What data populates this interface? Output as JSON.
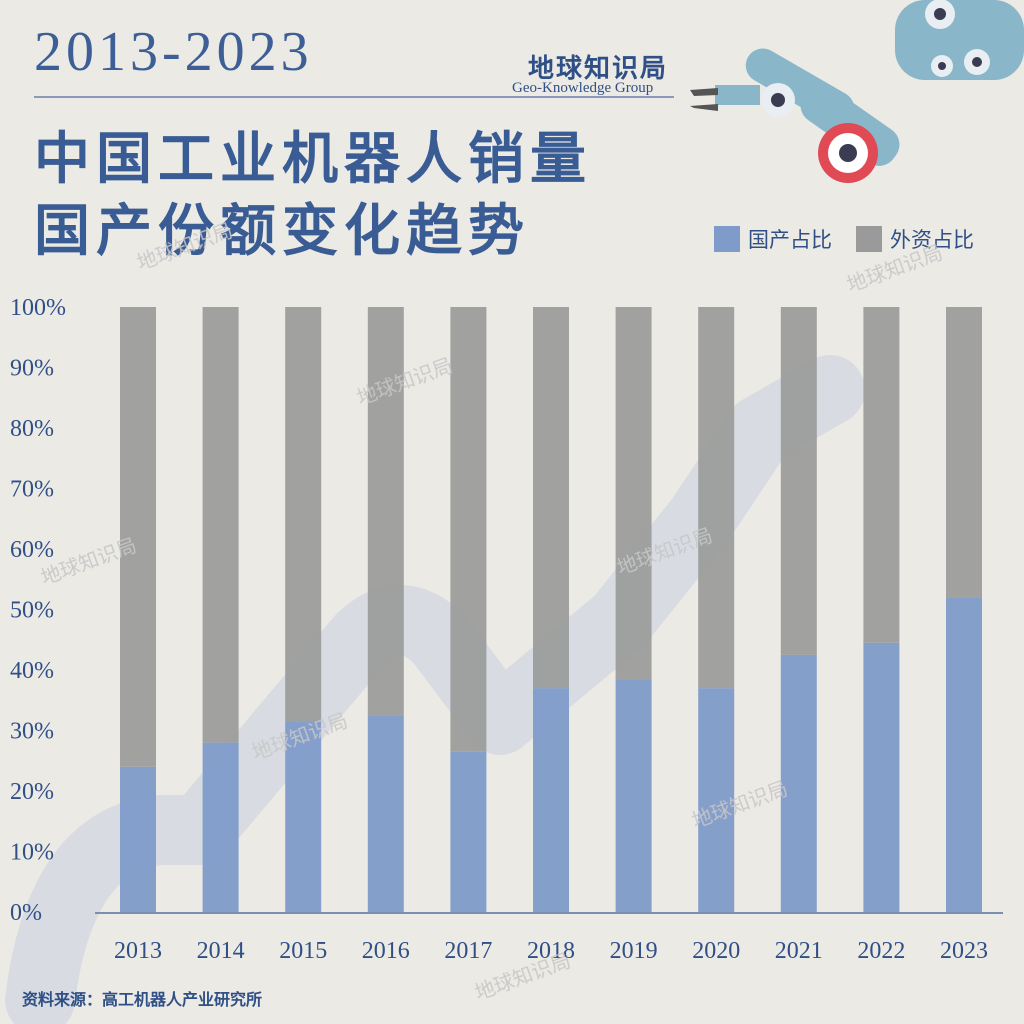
{
  "header": {
    "year_range": "2013-2023",
    "title_line1": "中国工业机器人销量",
    "title_line2": "国产份额变化趋势"
  },
  "brand": {
    "name": "地球知识局",
    "subtitle": "Geo-Knowledge Group",
    "watermark": "地球知识局"
  },
  "legend": [
    {
      "label": "国产占比",
      "color": "#7f9bc9"
    },
    {
      "label": "外资占比",
      "color": "#9a9a9a"
    }
  ],
  "source": "资料来源：高工机器人产业研究所",
  "chart_data": {
    "type": "bar",
    "stacked": true,
    "categories": [
      "2013",
      "2014",
      "2015",
      "2016",
      "2017",
      "2018",
      "2019",
      "2020",
      "2021",
      "2022",
      "2023"
    ],
    "series": [
      {
        "name": "国产占比",
        "color": "#7f9bc9",
        "values": [
          24,
          28,
          31.5,
          32.5,
          26.5,
          37,
          38.5,
          37,
          42.5,
          44.5,
          52
        ]
      },
      {
        "name": "外资占比",
        "color": "#9a9a9a",
        "values": [
          76,
          72,
          68.5,
          67.5,
          73.5,
          63,
          61.5,
          63,
          57.5,
          55.5,
          48
        ]
      }
    ],
    "yticks": [
      "0%",
      "10%",
      "20%",
      "30%",
      "40%",
      "50%",
      "60%",
      "70%",
      "80%",
      "90%",
      "100%"
    ],
    "ylim": [
      0,
      100
    ],
    "grid": false,
    "legend_position": "top-right"
  }
}
